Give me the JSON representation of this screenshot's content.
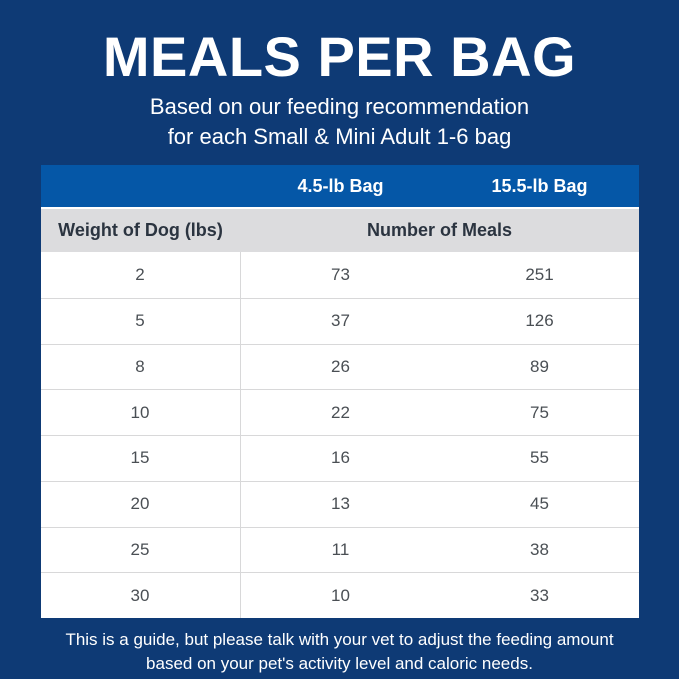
{
  "header": {
    "title": "MEALS PER BAG",
    "subtitle_line1": "Based on our feeding recommendation",
    "subtitle_line2": "for each Small & Mini Adult 1-6 bag"
  },
  "chart_data": {
    "type": "table",
    "title": "MEALS PER BAG",
    "bag_column_headers": [
      "4.5-lb Bag",
      "15.5-lb Bag"
    ],
    "row_header_label": "Weight of Dog (lbs)",
    "values_group_label": "Number of Meals",
    "rows": [
      {
        "weight": "2",
        "bag_4_5": "73",
        "bag_15_5": "251"
      },
      {
        "weight": "5",
        "bag_4_5": "37",
        "bag_15_5": "126"
      },
      {
        "weight": "8",
        "bag_4_5": "26",
        "bag_15_5": "89"
      },
      {
        "weight": "10",
        "bag_4_5": "22",
        "bag_15_5": "75"
      },
      {
        "weight": "15",
        "bag_4_5": "16",
        "bag_15_5": "55"
      },
      {
        "weight": "20",
        "bag_4_5": "13",
        "bag_15_5": "45"
      },
      {
        "weight": "25",
        "bag_4_5": "11",
        "bag_15_5": "38"
      },
      {
        "weight": "30",
        "bag_4_5": "10",
        "bag_15_5": "33"
      }
    ]
  },
  "footer": {
    "line1": "This is a guide, but please talk with your vet to adjust the feeding amount",
    "line2": "based on your pet's activity level and caloric needs."
  },
  "colors": {
    "background_navy": "#0e3a75",
    "table_header_blue": "#0557a7",
    "subheader_gray": "#dcdcde",
    "body_white": "#ffffff",
    "divider_gray": "#d8d8d9",
    "subheader_text": "#2b3440",
    "number_text": "#4a4f54",
    "title_text": "#ffffff"
  }
}
